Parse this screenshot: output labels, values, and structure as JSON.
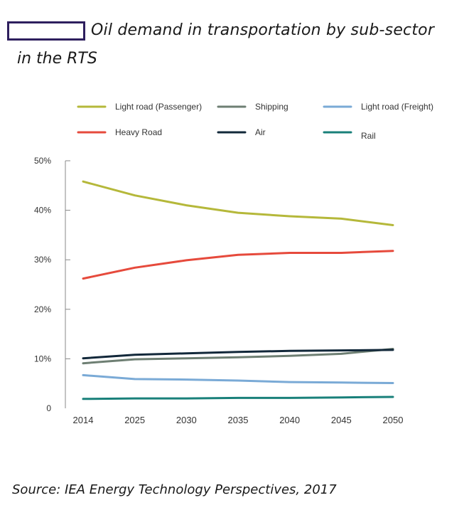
{
  "header": {
    "title_line1": "Oil demand in transportation by sub-sector",
    "title_line2": "in the RTS"
  },
  "footer": {
    "source": "Source: IEA Energy Technology Perspectives, 2017"
  },
  "chart_data": {
    "type": "line",
    "title": "Oil demand in transportation by sub-sector in the RTS",
    "xlabel": "",
    "ylabel": "",
    "x": [
      "2014",
      "2025",
      "2030",
      "2035",
      "2040",
      "2045",
      "2050"
    ],
    "ylim": [
      0,
      50
    ],
    "y_ticks": [
      0,
      10,
      20,
      30,
      40,
      50
    ],
    "y_tick_labels": [
      "0",
      "10%",
      "20%",
      "30%",
      "40%",
      "50%"
    ],
    "grid": false,
    "legend_position": "top",
    "series": [
      {
        "name": "Light road (Passenger)",
        "color": "#b5b83a",
        "values": [
          45.8,
          43.0,
          41.0,
          39.5,
          38.8,
          38.3,
          37.0
        ]
      },
      {
        "name": "Shipping",
        "color": "#6e7f73",
        "values": [
          9.1,
          9.9,
          10.1,
          10.3,
          10.6,
          11.0,
          12.0
        ]
      },
      {
        "name": "Light road (Freight)",
        "color": "#7aaad6",
        "values": [
          6.7,
          5.9,
          5.8,
          5.6,
          5.3,
          5.2,
          5.1
        ]
      },
      {
        "name": "Heavy Road",
        "color": "#e64a3c",
        "values": [
          26.2,
          28.4,
          29.9,
          31.0,
          31.4,
          31.4,
          31.8
        ]
      },
      {
        "name": "Air",
        "color": "#12283a",
        "values": [
          10.1,
          10.8,
          11.1,
          11.4,
          11.6,
          11.7,
          11.8
        ]
      },
      {
        "name": "Rail",
        "color": "#19807a",
        "values": [
          1.9,
          2.0,
          2.0,
          2.1,
          2.1,
          2.2,
          2.3
        ]
      }
    ]
  }
}
